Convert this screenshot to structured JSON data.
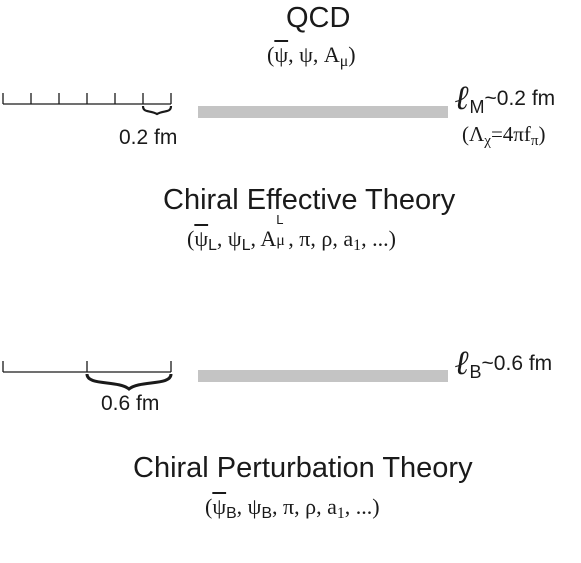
{
  "top": {
    "title": "QCD",
    "fields": {
      "psi_bar": "ψ",
      "psi": "ψ",
      "A": "A",
      "mu": "μ"
    },
    "scale_label": "0.2 fm",
    "ell_symbol": "ℓ",
    "ell_sub": "M",
    "ell_value": "~0.2 fm",
    "lambda": {
      "symbol": "Λ",
      "sub": "χ",
      "eq": "=4πf",
      "pi_sub": "π"
    }
  },
  "middle": {
    "title": "Chiral Effective Theory",
    "fields": {
      "psi_bar": "ψ",
      "L": "L",
      "psi": "ψ",
      "A": "A",
      "mu": "μ",
      "rest": ", π, ρ, a",
      "one": "1",
      "dots": ", ...)"
    }
  },
  "bottom": {
    "title": "Chiral Perturbation Theory",
    "fields": {
      "psi_bar": "ψ",
      "B": "B",
      "psi": "ψ",
      "rest": ", π, ρ, a",
      "one": "1",
      "dots": ", ...)"
    },
    "scale_label": "0.6 fm",
    "ell_symbol": "ℓ",
    "ell_sub": "B",
    "ell_value": "~0.6 fm"
  },
  "colors": {
    "bar": "#c4c4c4",
    "ink": "#1a1a1a"
  }
}
